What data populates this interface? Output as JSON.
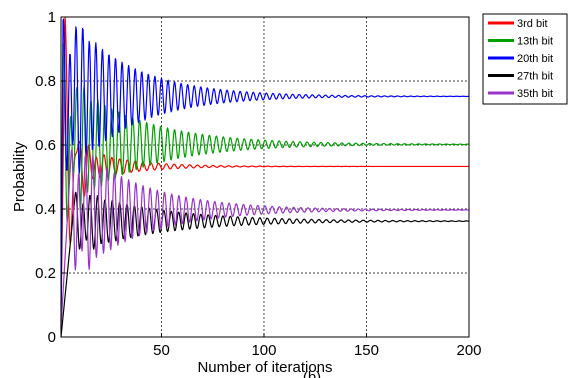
{
  "chart_data": {
    "type": "line",
    "title": "",
    "panel_label": "(b)",
    "xlabel": "Number of iterations",
    "ylabel": "Probability",
    "xlim": [
      1,
      200
    ],
    "ylim": [
      0,
      1
    ],
    "xticks": [
      50,
      100,
      150,
      200
    ],
    "yticks": [
      0,
      0.2,
      0.4,
      0.6,
      0.8,
      1
    ],
    "xtick_labels": [
      "50",
      "100",
      "150",
      "200"
    ],
    "ytick_labels": [
      "0",
      "0.2",
      "0.4",
      "0.6",
      "0.8",
      "1"
    ],
    "grid": true,
    "legend_position": "outside-top-right",
    "series": [
      {
        "name": "3rd bit",
        "color": "#ff0000",
        "start": 0.05,
        "steady": 0.533,
        "peak": 1.0,
        "peak_x": 3,
        "swing": 0.08,
        "decay": 22,
        "period": 3.8
      },
      {
        "name": "13th bit",
        "color": "#00a000",
        "start": 0.08,
        "steady": 0.602,
        "peak": 0.92,
        "peak_x": 2,
        "swing": 0.22,
        "decay": 35,
        "period": 3.4
      },
      {
        "name": "20th bit",
        "color": "#0000ff",
        "start": 0.02,
        "steady": 0.752,
        "peak": 0.99,
        "peak_x": 2,
        "swing": 0.28,
        "decay": 30,
        "period": 3.2
      },
      {
        "name": "27th bit",
        "color": "#000000",
        "start": 0.0,
        "steady": 0.362,
        "peak": 0.45,
        "peak_x": 8,
        "swing": 0.1,
        "decay": 40,
        "period": 3.6
      },
      {
        "name": "35th bit",
        "color": "#9933cc",
        "start": 0.03,
        "steady": 0.397,
        "peak": 0.58,
        "peak_x": 6,
        "swing": 0.22,
        "decay": 33,
        "period": 3.5
      }
    ]
  }
}
